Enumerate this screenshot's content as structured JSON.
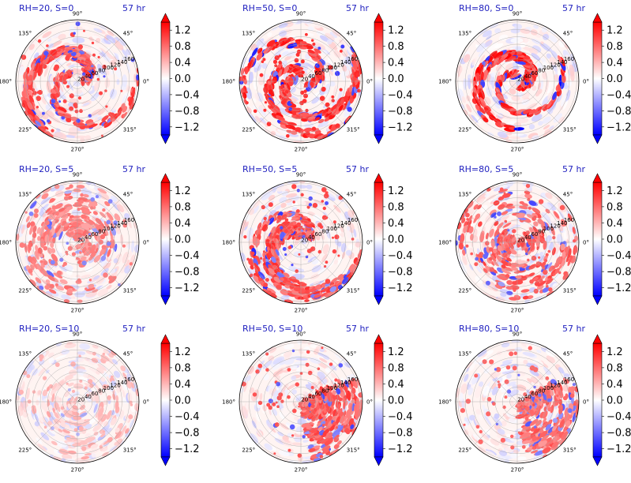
{
  "chart_data": {
    "type": "polar-contourf",
    "layout": {
      "rows": 3,
      "cols": 3
    },
    "time_label": "57 hr",
    "angular_ticks": [
      "0°",
      "45°",
      "90°",
      "135°",
      "180°",
      "225°",
      "270°",
      "315°"
    ],
    "radial_ticks": [
      "20",
      "40",
      "60",
      "80",
      "100",
      "120",
      "140",
      "160"
    ],
    "colormap": "bwr",
    "colorbar": {
      "range": [
        -1.4,
        1.4
      ],
      "extend": "both",
      "ticks": [
        "1.2",
        "0.8",
        "0.4",
        "0.0",
        "−0.4",
        "−0.8",
        "−1.2"
      ]
    },
    "panels": [
      {
        "title": "RH=20, S=0",
        "time": "57 hr",
        "pattern": "spiral_bands",
        "intensity": 0.85
      },
      {
        "title": "RH=50, S=0",
        "time": "57 hr",
        "pattern": "spiral_bands",
        "intensity": 0.95
      },
      {
        "title": "RH=80, S=0",
        "time": "57 hr",
        "pattern": "compact_core",
        "intensity": 1.0
      },
      {
        "title": "RH=20, S=5",
        "time": "57 hr",
        "pattern": "scattered",
        "intensity": 0.6
      },
      {
        "title": "RH=50, S=5",
        "time": "57 hr",
        "pattern": "spiral_bands",
        "intensity": 0.85
      },
      {
        "title": "RH=80, S=5",
        "time": "57 hr",
        "pattern": "scattered",
        "intensity": 0.75
      },
      {
        "title": "RH=20, S=10",
        "time": "57 hr",
        "pattern": "sparse",
        "intensity": 0.35
      },
      {
        "title": "RH=50, S=10",
        "time": "57 hr",
        "pattern": "sheared",
        "intensity": 0.8
      },
      {
        "title": "RH=80, S=10",
        "time": "57 hr",
        "pattern": "sheared",
        "intensity": 0.7
      }
    ]
  }
}
